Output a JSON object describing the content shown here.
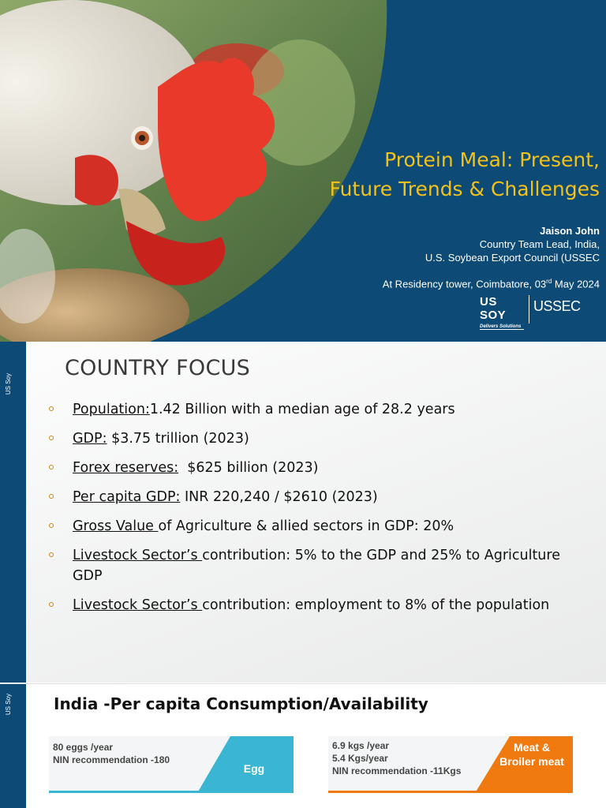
{
  "slide1": {
    "title_line1": "Protein Meal: Present,",
    "title_line2": "Future Trends & Challenges",
    "presenter_name": "Jaison John",
    "presenter_role": "Country Team Lead, India,",
    "presenter_org": "U.S. Soybean Export Council (USSEC",
    "venue_prefix": "At Residency tower, Coimbatore, 03",
    "venue_sup": "rd",
    "venue_suffix": " May 2024",
    "logo_soy": "US SOY",
    "logo_soy_tagline": "Delivers Solutions",
    "logo_ussec": "USSEC",
    "colors": {
      "background": "#0d4a75",
      "title": "#f2c21b"
    }
  },
  "slide2": {
    "sidebar_label": "US Soy",
    "heading": "COUNTRY FOCUS",
    "bullets": [
      {
        "label": "Population:",
        "text": "1.42 Billion with a median age of 28.2 years"
      },
      {
        "label": "GDP:",
        "text": " $3.75 trillion (2023)"
      },
      {
        "label": "Forex reserves:",
        "text": "  $625 billion (2023)"
      },
      {
        "label": "Per capita GDP:",
        "text": " INR 220,240 / $2610 (2023)"
      },
      {
        "label": "Gross Value ",
        "text": "of Agriculture & allied sectors in GDP: 20%"
      },
      {
        "label": "Livestock Sector’s ",
        "text": "contribution: 5% to the GDP and 25% to Agriculture GDP"
      },
      {
        "label": "Livestock Sector’s ",
        "text": "contribution: employment to 8% of the population"
      }
    ]
  },
  "slide3": {
    "sidebar_label": "US Soy",
    "heading": "India -Per capita Consumption/Availability",
    "egg": {
      "line1": "80 eggs /year",
      "line2": "NIN recommendation -180",
      "label": "Egg",
      "color": "#3ab6d4"
    },
    "meat": {
      "line1": "6.9 kgs /year",
      "line2": "5.4 Kgs/year",
      "line3": "NIN recommendation -11Kgs",
      "label_line1": "Meat &",
      "label_line2": "Broiler meat",
      "color": "#f07a10"
    }
  }
}
